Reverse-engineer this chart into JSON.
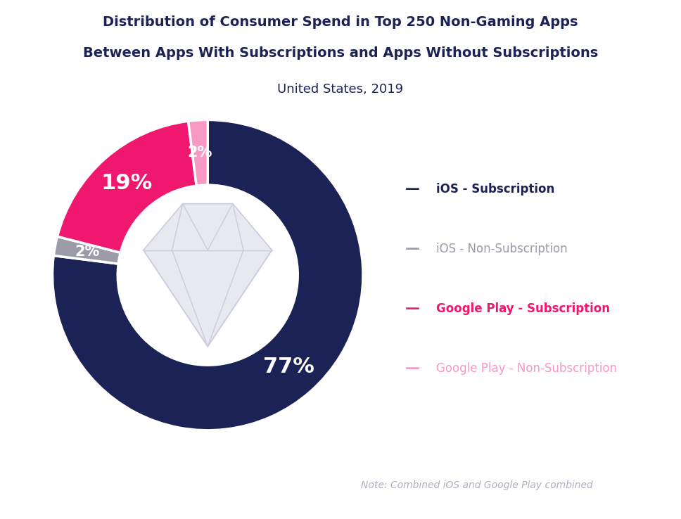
{
  "title_line1": "Distribution of Consumer Spend in Top 250 Non-Gaming Apps",
  "title_line2": "Between Apps With Subscriptions and Apps Without Subscriptions",
  "subtitle": "United States, 2019",
  "note": "Note: Combined iOS and Google Play combined",
  "segments": [
    {
      "label": "iOS - Subscription",
      "value": 77,
      "color": "#1b2255",
      "text_color": "#ffffff",
      "pct": "77%"
    },
    {
      "label": "iOS - Non-Subscription",
      "value": 2,
      "color": "#9b9baa",
      "text_color": "#ffffff",
      "pct": "2%"
    },
    {
      "label": "Google Play - Subscription",
      "value": 19,
      "color": "#f0176f",
      "text_color": "#ffffff",
      "pct": "19%"
    },
    {
      "label": "Google Play - Non-Subscription",
      "value": 2,
      "color": "#f799c3",
      "text_color": "#ffffff",
      "pct": "2%"
    }
  ],
  "legend_labels": [
    "iOS - Subscription",
    "iOS - Non-Subscription",
    "Google Play - Subscription",
    "Google Play - Non-Subscription"
  ],
  "legend_colors": [
    "#1b2255",
    "#9b9baa",
    "#f0176f",
    "#f799c3"
  ],
  "legend_bold": [
    true,
    false,
    true,
    false
  ],
  "background_color": "#ffffff",
  "title_color": "#1b2255",
  "subtitle_color": "#1b2255",
  "note_color": "#b0b0c0",
  "start_angle": 90,
  "pink_square_color": "#f0176f"
}
